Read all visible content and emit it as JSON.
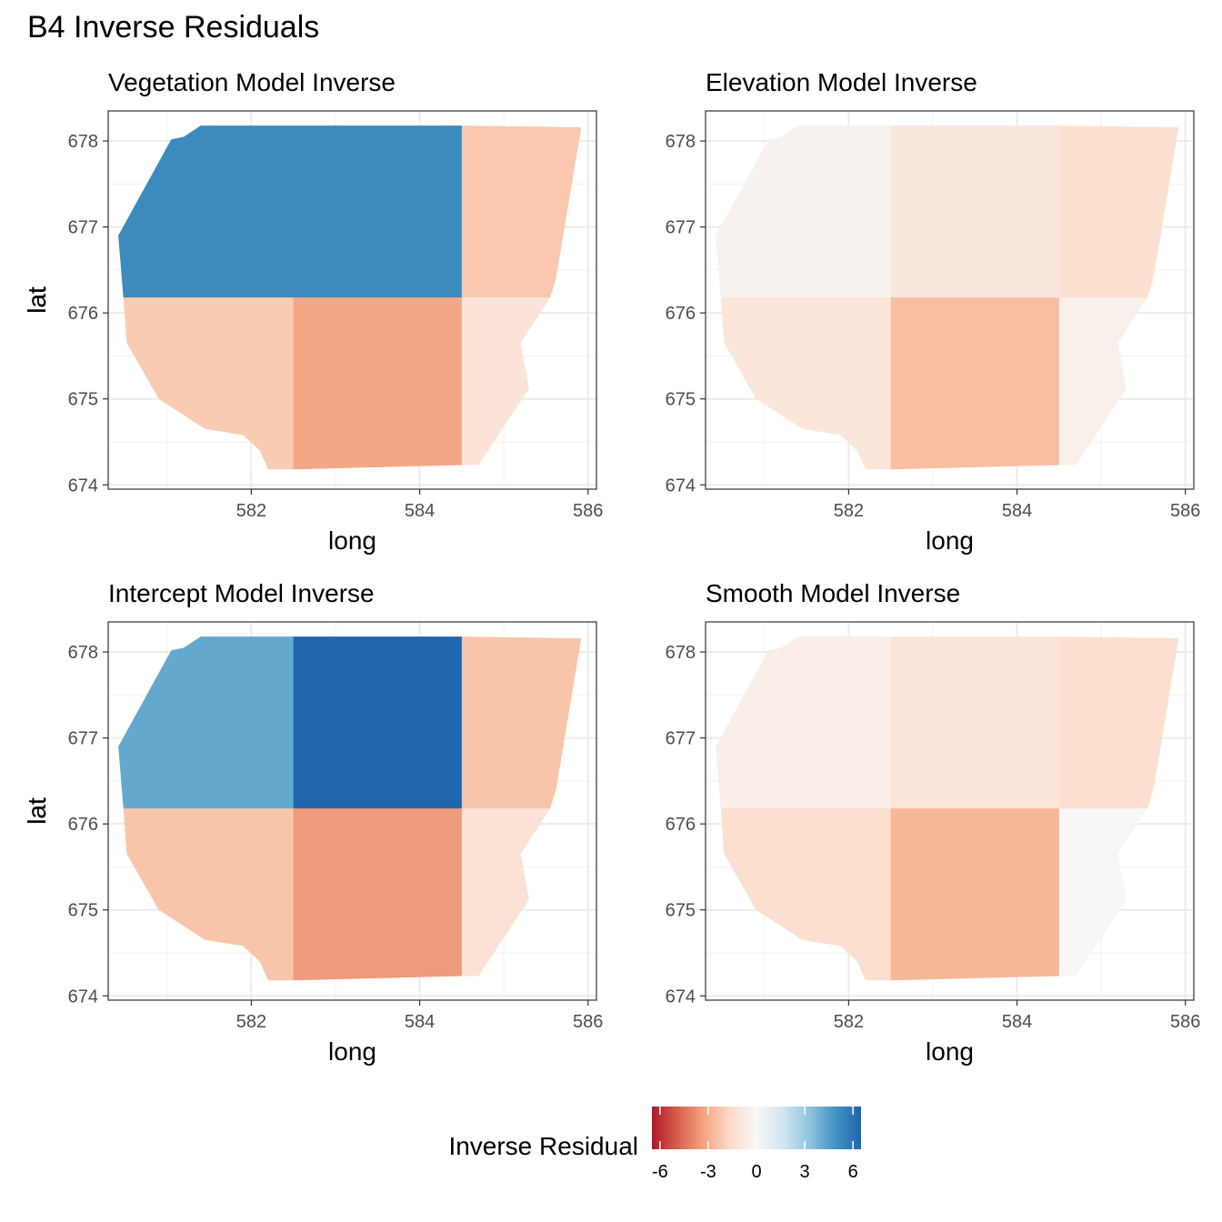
{
  "title": "B4 Inverse Residuals",
  "legend": {
    "title": "Inverse Residual",
    "ticks": [
      -6,
      -3,
      0,
      3,
      6
    ],
    "tick_labels": [
      "-6",
      "-3",
      "0",
      "3",
      "6"
    ],
    "limits": [
      -6.5,
      6.5
    ],
    "palette": [
      "#b2182b",
      "#d6604d",
      "#f4a582",
      "#fddbc7",
      "#f7f7f7",
      "#d1e5f0",
      "#92c5de",
      "#4393c3",
      "#2166ac"
    ],
    "placement": "bottom"
  },
  "chart_data": [
    {
      "type": "heatmap",
      "title": "Vegetation Model Inverse",
      "xlabel": "long",
      "ylabel": "lat",
      "xlim": [
        580.3,
        586.1
      ],
      "ylim": [
        673.95,
        678.35
      ],
      "x_ticks": [
        582,
        584,
        586
      ],
      "x_tick_labels": [
        "582",
        "584",
        "586"
      ],
      "y_ticks": [
        674,
        675,
        676,
        677,
        678
      ],
      "y_tick_labels": [
        "674",
        "675",
        "676",
        "677",
        "678"
      ],
      "grid": true,
      "x_breaks": [
        580.3,
        582.5,
        584.5,
        586.1
      ],
      "y_breaks": [
        673.95,
        676.18,
        678.35
      ],
      "cells": [
        [
          5.2,
          5.2,
          -2.2
        ],
        [
          -2.1,
          -3.2,
          -1.1
        ]
      ]
    },
    {
      "type": "heatmap",
      "title": "Elevation Model Inverse",
      "xlabel": "long",
      "ylabel": "lat",
      "xlim": [
        580.3,
        586.1
      ],
      "ylim": [
        673.95,
        678.35
      ],
      "x_ticks": [
        582,
        584,
        586
      ],
      "x_tick_labels": [
        "582",
        "584",
        "586"
      ],
      "y_ticks": [
        674,
        675,
        676,
        677,
        678
      ],
      "y_tick_labels": [
        "674",
        "675",
        "676",
        "677",
        "678"
      ],
      "grid": true,
      "x_breaks": [
        580.3,
        582.5,
        584.5,
        586.1
      ],
      "y_breaks": [
        673.95,
        676.18,
        678.35
      ],
      "cells": [
        [
          -0.3,
          -0.9,
          -1.3
        ],
        [
          -1.0,
          -2.5,
          -0.4
        ]
      ]
    },
    {
      "type": "heatmap",
      "title": "Intercept Model Inverse",
      "xlabel": "long",
      "ylabel": "lat",
      "xlim": [
        580.3,
        586.1
      ],
      "ylim": [
        673.95,
        678.35
      ],
      "x_ticks": [
        582,
        584,
        586
      ],
      "x_tick_labels": [
        "582",
        "584",
        "586"
      ],
      "y_ticks": [
        674,
        675,
        676,
        677,
        678
      ],
      "y_tick_labels": [
        "674",
        "675",
        "676",
        "677",
        "678"
      ],
      "grid": true,
      "x_breaks": [
        580.3,
        582.5,
        584.5,
        586.1
      ],
      "y_breaks": [
        673.95,
        676.18,
        678.35
      ],
      "cells": [
        [
          4.2,
          6.5,
          -2.3
        ],
        [
          -2.3,
          -3.5,
          -1.2
        ]
      ]
    },
    {
      "type": "heatmap",
      "title": "Smooth Model Inverse",
      "xlabel": "long",
      "ylabel": "lat",
      "xlim": [
        580.3,
        586.1
      ],
      "ylim": [
        673.95,
        678.35
      ],
      "x_ticks": [
        582,
        584,
        586
      ],
      "x_tick_labels": [
        "582",
        "584",
        "586"
      ],
      "y_ticks": [
        674,
        675,
        676,
        677,
        678
      ],
      "y_tick_labels": [
        "674",
        "675",
        "676",
        "677",
        "678"
      ],
      "grid": true,
      "x_breaks": [
        580.3,
        582.5,
        584.5,
        586.1
      ],
      "y_breaks": [
        673.95,
        676.18,
        678.35
      ],
      "cells": [
        [
          -0.5,
          -1.0,
          -1.4
        ],
        [
          -1.4,
          -2.7,
          0.0
        ]
      ]
    }
  ],
  "region_outline": [
    [
      581.4,
      678.18
    ],
    [
      584.5,
      678.18
    ],
    [
      585.92,
      678.16
    ],
    [
      585.62,
      676.4
    ],
    [
      585.55,
      676.18
    ],
    [
      585.2,
      675.65
    ],
    [
      585.3,
      675.12
    ],
    [
      584.7,
      674.23
    ],
    [
      584.5,
      674.23
    ],
    [
      582.5,
      674.18
    ],
    [
      582.2,
      674.18
    ],
    [
      582.1,
      674.4
    ],
    [
      581.9,
      674.58
    ],
    [
      581.45,
      674.65
    ],
    [
      580.9,
      675.0
    ],
    [
      580.52,
      675.65
    ],
    [
      580.48,
      676.18
    ],
    [
      580.42,
      676.9
    ],
    [
      581.05,
      678.02
    ],
    [
      581.2,
      678.05
    ]
  ]
}
